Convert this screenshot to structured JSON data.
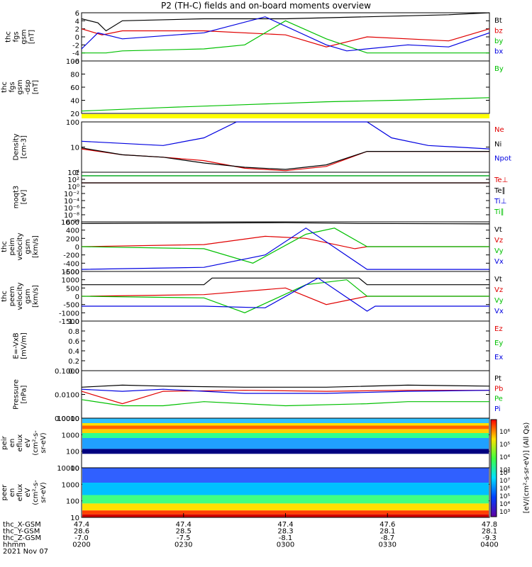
{
  "title": "P2 (TH-C) fields and on-board moments overview",
  "colors": {
    "black": "#000000",
    "red": "#e00000",
    "green": "#00c000",
    "blue": "#0000e0",
    "yellow": "#ffff00"
  },
  "chart_data": [
    {
      "type": "line",
      "ylabel": [
        "thc",
        "fgs",
        "gsm",
        "[nT]"
      ],
      "yticks": [
        "6",
        "4",
        "2",
        "0",
        "-2",
        "-4",
        "-6"
      ],
      "ylim": [
        -6,
        6
      ],
      "grid": false,
      "series": [
        {
          "name": "Bt",
          "color": "black",
          "x": [
            0,
            0.04,
            0.06,
            0.1,
            0.3,
            0.5,
            0.7,
            0.9,
            1
          ],
          "values": [
            4.5,
            3.5,
            1.5,
            4,
            4.5,
            4.5,
            5,
            5.5,
            6
          ]
        },
        {
          "name": "bz",
          "color": "red",
          "x": [
            0,
            0.05,
            0.1,
            0.3,
            0.5,
            0.6,
            0.7,
            0.9,
            1
          ],
          "values": [
            2,
            0.5,
            1.5,
            1.5,
            0.5,
            -2.5,
            0,
            -1,
            2
          ]
        },
        {
          "name": "by",
          "color": "green",
          "x": [
            0,
            0.06,
            0.1,
            0.3,
            0.4,
            0.5,
            0.6,
            0.7,
            0.9,
            1
          ],
          "values": [
            -4,
            -4,
            -3.5,
            -3,
            -2,
            4,
            -0.5,
            -4,
            -4,
            -4
          ]
        },
        {
          "name": "bx",
          "color": "blue",
          "x": [
            0,
            0.04,
            0.1,
            0.3,
            0.45,
            0.6,
            0.65,
            0.8,
            0.9,
            1
          ],
          "values": [
            -3,
            1,
            -0.5,
            1,
            5,
            -2,
            -3.5,
            -2,
            -2.5,
            1
          ]
        }
      ]
    },
    {
      "type": "line",
      "ylabel": [
        "thc",
        "fgs",
        "gsm",
        "-dsp",
        "[nT]"
      ],
      "yticks": [
        "100",
        "80",
        "60",
        "40",
        "20"
      ],
      "ylim": [
        10,
        100
      ],
      "grid": false,
      "series": [
        {
          "name": "By",
          "color": "green",
          "x": [
            0,
            0.2,
            0.4,
            0.6,
            0.8,
            1
          ],
          "values": [
            14,
            20,
            25,
            30,
            33,
            37
          ]
        }
      ]
    },
    {
      "type": "line",
      "ylabel": [
        "Density",
        "[cm-3]"
      ],
      "yticks": [
        "100",
        "10",
        "1"
      ],
      "ylim": [
        0.5,
        200
      ],
      "grid": false,
      "series": [
        {
          "name": "Ne",
          "color": "red",
          "x": [
            0,
            0.1,
            0.2,
            0.3,
            0.4,
            0.5,
            0.6,
            0.7,
            0.8,
            1
          ],
          "values": [
            8,
            4,
            3,
            2,
            0.8,
            0.6,
            1,
            6,
            6,
            6
          ]
        },
        {
          "name": "Ni",
          "color": "black",
          "x": [
            0,
            0.1,
            0.2,
            0.3,
            0.4,
            0.5,
            0.6,
            0.7,
            0.8,
            1
          ],
          "values": [
            9,
            4,
            3,
            1.5,
            0.9,
            0.7,
            1.2,
            6,
            6,
            6
          ]
        },
        {
          "name": "Npot",
          "color": "blue",
          "x": [
            0,
            0.2,
            0.3,
            0.38,
            0.45,
            0.62,
            0.7,
            0.76,
            0.85,
            1
          ],
          "values": [
            20,
            12,
            30,
            200,
            200,
            200,
            200,
            30,
            12,
            8
          ]
        }
      ]
    },
    {
      "type": "line",
      "ylabel": [
        "moqt3",
        "[eV]"
      ],
      "yticks": [
        "10⁴",
        "10²",
        "10⁰",
        "10⁻²",
        "10⁻⁴",
        "10⁻⁶",
        "10⁻⁸",
        "10⁻¹⁰"
      ],
      "ylim": [
        -10,
        4
      ],
      "grid": false,
      "series": [
        {
          "name": "Te⊥",
          "color": "red",
          "x": [
            0,
            1
          ],
          "values": [
            1,
            1
          ]
        },
        {
          "name": "Te∥",
          "color": "black",
          "x": [
            0,
            1
          ],
          "values": [
            1,
            1
          ]
        },
        {
          "name": "Ti⊥",
          "color": "blue",
          "x": [
            0,
            1
          ],
          "values": [
            3,
            3
          ]
        },
        {
          "name": "Ti∥",
          "color": "green",
          "x": [
            0,
            1
          ],
          "values": [
            3,
            3
          ]
        }
      ]
    },
    {
      "type": "line",
      "ylabel": [
        "thc",
        "peim",
        "velocity",
        "gsm",
        "[km/s]"
      ],
      "yticks": [
        "600",
        "400",
        "200",
        "0",
        "-200",
        "-400",
        "-600"
      ],
      "ylim": [
        -600,
        600
      ],
      "grid": false,
      "series": [
        {
          "name": "Vt",
          "color": "black",
          "x": [
            0,
            0.5,
            0.68,
            0.7,
            1
          ],
          "values": [
            560,
            580,
            560,
            560,
            550
          ]
        },
        {
          "name": "Vz",
          "color": "red",
          "x": [
            0,
            0.3,
            0.45,
            0.55,
            0.67,
            0.7,
            1
          ],
          "values": [
            0,
            50,
            250,
            200,
            -50,
            0,
            0
          ]
        },
        {
          "name": "Vy",
          "color": "green",
          "x": [
            0,
            0.3,
            0.42,
            0.55,
            0.62,
            0.7,
            1
          ],
          "values": [
            0,
            -50,
            -400,
            300,
            450,
            0,
            0
          ]
        },
        {
          "name": "Vx",
          "color": "blue",
          "x": [
            0,
            0.3,
            0.45,
            0.55,
            0.7,
            0.72,
            1
          ],
          "values": [
            -550,
            -500,
            -200,
            450,
            -550,
            -550,
            -550
          ]
        }
      ]
    },
    {
      "type": "line",
      "ylabel": [
        "thc",
        "peem",
        "velocity",
        "gsm",
        "[km/s]"
      ],
      "yticks": [
        "1500",
        "1000",
        "500",
        "0",
        "-500",
        "-1000",
        "-1500"
      ],
      "ylim": [
        -1500,
        1500
      ],
      "grid": false,
      "series": [
        {
          "name": "Vt",
          "color": "black",
          "x": [
            0,
            0.3,
            0.32,
            0.68,
            0.7,
            1
          ],
          "values": [
            700,
            700,
            1100,
            1100,
            700,
            700
          ]
        },
        {
          "name": "Vz",
          "color": "red",
          "x": [
            0,
            0.3,
            0.5,
            0.6,
            0.7,
            1
          ],
          "values": [
            0,
            100,
            500,
            -500,
            0,
            0
          ]
        },
        {
          "name": "Vy",
          "color": "green",
          "x": [
            0,
            0.3,
            0.4,
            0.55,
            0.65,
            0.7,
            1
          ],
          "values": [
            0,
            -100,
            -1000,
            700,
            1000,
            0,
            0
          ]
        },
        {
          "name": "Vx",
          "color": "blue",
          "x": [
            0,
            0.3,
            0.45,
            0.58,
            0.7,
            0.72,
            1
          ],
          "values": [
            -600,
            -600,
            -700,
            1100,
            -900,
            -600,
            -600
          ]
        }
      ]
    },
    {
      "type": "line",
      "ylabel": [
        "E=-VxB",
        "[mV/m]"
      ],
      "yticks": [
        "1.0",
        "0.8",
        "0.6",
        "0.4",
        "0.2",
        "0.0"
      ],
      "ylim": [
        0,
        1
      ],
      "grid": false,
      "series": [
        {
          "name": "Ez",
          "color": "red",
          "x": [],
          "values": []
        },
        {
          "name": "Ey",
          "color": "green",
          "x": [],
          "values": []
        },
        {
          "name": "Ex",
          "color": "blue",
          "x": [],
          "values": []
        }
      ]
    },
    {
      "type": "line",
      "ylabel": [
        "Pressure",
        "[nPa]"
      ],
      "yticks": [
        "0.1000",
        "0.0100",
        "0.0010"
      ],
      "ylim": [
        -3.2,
        -0.9
      ],
      "grid": false,
      "series": [
        {
          "name": "Pt",
          "color": "black",
          "x": [
            0,
            0.1,
            0.2,
            0.4,
            0.6,
            0.8,
            1
          ],
          "values": [
            -1.7,
            -1.6,
            -1.65,
            -1.7,
            -1.7,
            -1.6,
            -1.65
          ]
        },
        {
          "name": "Pb",
          "color": "red",
          "x": [
            0,
            0.1,
            0.2,
            0.4,
            0.6,
            0.8,
            1
          ],
          "values": [
            -1.9,
            -2.5,
            -1.9,
            -1.85,
            -1.9,
            -1.85,
            -1.85
          ]
        },
        {
          "name": "Pe",
          "color": "green",
          "x": [
            0,
            0.1,
            0.2,
            0.3,
            0.5,
            0.7,
            0.8,
            1
          ],
          "values": [
            -2.3,
            -2.6,
            -2.6,
            -2.4,
            -2.6,
            -2.5,
            -2.4,
            -2.4
          ]
        },
        {
          "name": "Pi",
          "color": "blue",
          "x": [
            0,
            0.1,
            0.2,
            0.4,
            0.6,
            0.8,
            1
          ],
          "values": [
            -1.8,
            -1.9,
            -1.8,
            -2,
            -2,
            -1.9,
            -1.85
          ]
        }
      ]
    },
    {
      "type": "heatmap",
      "ylabel": [
        "thc",
        "peir",
        "en",
        "eflux",
        "eV",
        "(cm²-s-",
        "sr-eV)"
      ],
      "yticks": [
        "10000",
        "1000",
        "100",
        "10"
      ],
      "ylim": [
        5,
        20000
      ],
      "grid": false
    },
    {
      "type": "heatmap",
      "ylabel": [
        "thc",
        "peer",
        "en",
        "eflux",
        "eV",
        "(cm²-s-",
        "sr-eV)"
      ],
      "yticks": [
        "10000",
        "1000",
        "100",
        "10"
      ],
      "ylim": [
        5,
        20000
      ],
      "grid": false
    }
  ],
  "colorbar": {
    "label": "[eV/(cm²-s-sr-eV)] (All Qs)",
    "upper_ticks": [
      "10⁶",
      "10⁵",
      "10⁴",
      "10³"
    ],
    "lower_ticks": [
      "10⁸",
      "10⁷",
      "10⁶",
      "10⁵",
      "10⁴",
      "10³"
    ]
  },
  "time_axis": {
    "row_labels": [
      "thc_X-GSM",
      "thc_Y-GSM",
      "thc_Z-GSM",
      "hhmm",
      "2021 Nov 07"
    ],
    "columns": [
      [
        "47.4",
        "28.6",
        "-7.0",
        "0200"
      ],
      [
        "47.4",
        "28.5",
        "-7.5",
        "0230"
      ],
      [
        "47.4",
        "28.3",
        "-8.1",
        "0300"
      ],
      [
        "47.6",
        "28.1",
        "-8.7",
        "0330"
      ],
      [
        "47.8",
        "28.1",
        "-9.3",
        "0400"
      ]
    ]
  }
}
